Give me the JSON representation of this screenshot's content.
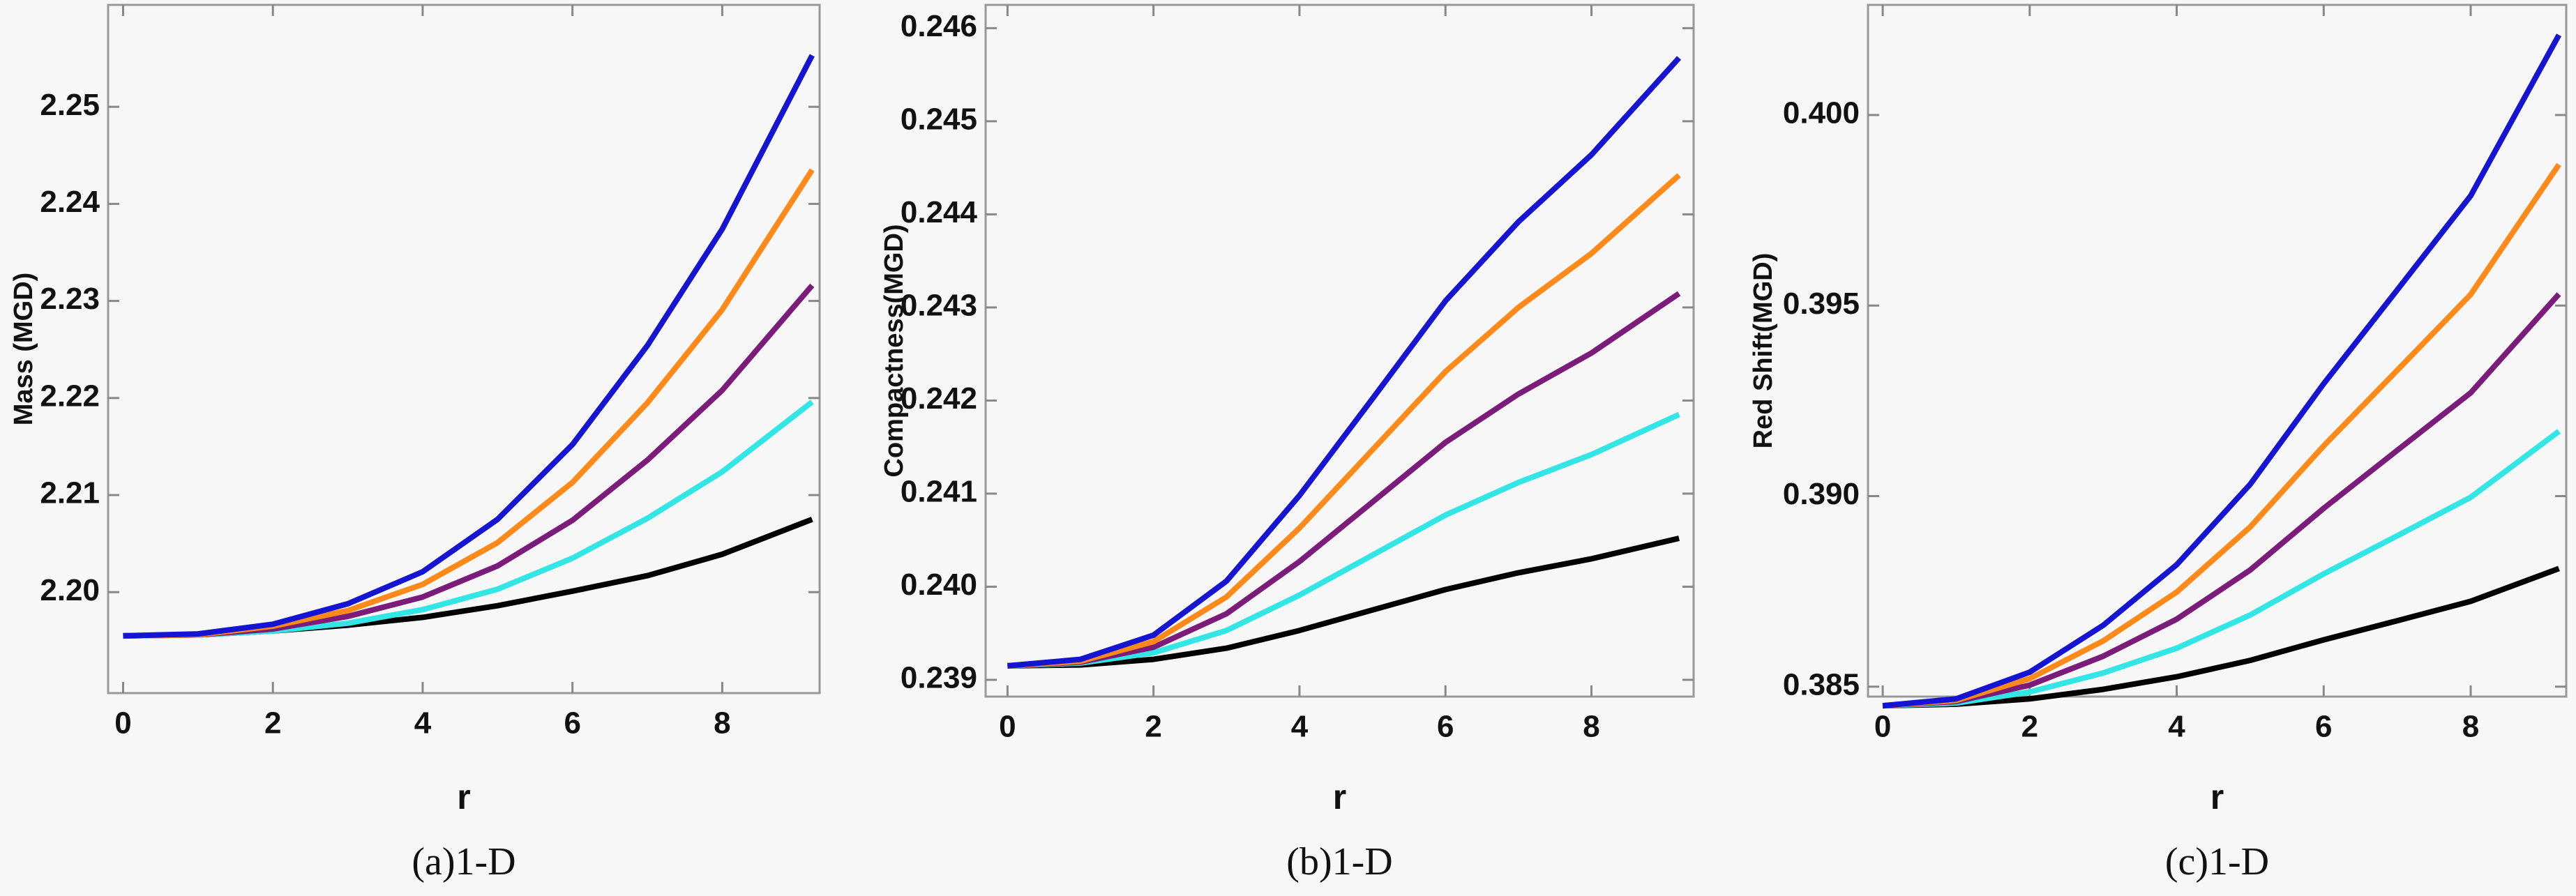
{
  "chart_data": [
    {
      "type": "line",
      "caption": "(a)1-D",
      "ylabel": "Mass (MGD)",
      "xlabel": "r",
      "x": [
        0,
        1,
        2,
        3,
        4,
        5,
        6,
        7,
        8,
        9.2
      ],
      "xlim": [
        -0.2,
        9.3
      ],
      "xticks": [
        0,
        2,
        4,
        6,
        8
      ],
      "ylim": [
        2.1896,
        2.2605
      ],
      "yticks": [
        {
          "value": 2.2,
          "label": "2.20"
        },
        2.21,
        2.22,
        2.23,
        2.24,
        2.25
      ],
      "series": [
        {
          "color": "#1414d2",
          "values": [
            2.1955,
            2.1957,
            2.1967,
            2.1988,
            2.2021,
            2.2075,
            2.2152,
            2.2254,
            2.2374,
            2.2553
          ]
        },
        {
          "color": "#ff8a1a",
          "values": [
            2.1955,
            2.1956,
            2.1965,
            2.1981,
            2.2008,
            2.2051,
            2.2113,
            2.2195,
            2.2291,
            2.2435
          ]
        },
        {
          "color": "#7b1c7b",
          "values": [
            2.1955,
            2.1956,
            2.1962,
            2.1975,
            2.1995,
            2.2027,
            2.2074,
            2.2136,
            2.2208,
            2.2316
          ]
        },
        {
          "color": "#33e6e6",
          "values": [
            2.1955,
            2.1956,
            2.196,
            2.1968,
            2.1982,
            2.2003,
            2.2035,
            2.2076,
            2.2124,
            2.2196
          ]
        },
        {
          "color": "#000000",
          "values": [
            2.1955,
            2.1956,
            2.196,
            2.1966,
            2.1974,
            2.1986,
            2.2001,
            2.2017,
            2.2039,
            2.2075
          ]
        }
      ]
    },
    {
      "type": "line",
      "caption": "(b)1-D",
      "ylabel": "Compactness(MGD)",
      "xlabel": "r",
      "x": [
        0,
        1,
        2,
        3,
        4,
        5,
        6,
        7,
        8,
        9.2
      ],
      "xlim": [
        -0.3,
        9.4
      ],
      "xticks": [
        0,
        2,
        4,
        6,
        8
      ],
      "ylim": [
        0.23882,
        0.24625
      ],
      "yticks": [
        0.239,
        {
          "value": 0.24,
          "label": "0.240"
        },
        0.241,
        0.242,
        0.243,
        0.244,
        0.245,
        0.246
      ],
      "series": [
        {
          "color": "#1414d2",
          "values": [
            0.23915,
            0.23922,
            0.23948,
            0.24006,
            0.24098,
            0.24202,
            0.24307,
            0.24392,
            0.24464,
            0.24568
          ]
        },
        {
          "color": "#ff8a1a",
          "values": [
            0.23915,
            0.2392,
            0.23941,
            0.23989,
            0.24063,
            0.24147,
            0.24231,
            0.243,
            0.24358,
            0.24442
          ]
        },
        {
          "color": "#7b1c7b",
          "values": [
            0.23915,
            0.23919,
            0.23935,
            0.23971,
            0.24027,
            0.24091,
            0.24155,
            0.24207,
            0.24251,
            0.24315
          ]
        },
        {
          "color": "#33e6e6",
          "values": [
            0.23915,
            0.23918,
            0.23929,
            0.23953,
            0.23991,
            0.24034,
            0.24077,
            0.24112,
            0.24142,
            0.24185
          ]
        },
        {
          "color": "#000000",
          "values": [
            0.23915,
            0.23916,
            0.23922,
            0.23934,
            0.23953,
            0.23975,
            0.23997,
            0.24015,
            0.2403,
            0.24052
          ]
        }
      ]
    },
    {
      "type": "line",
      "caption": "(c)1-D",
      "ylabel": "Red Shift(MGD)",
      "xlabel": "r",
      "x": [
        0,
        1,
        2,
        3,
        4,
        5,
        6,
        7,
        8,
        9.2
      ],
      "xlim": [
        -0.2,
        9.3
      ],
      "xticks": [
        0,
        2,
        4,
        6,
        8
      ],
      "ylim": [
        0.38474,
        0.40289
      ],
      "yticks": [
        0.385,
        {
          "value": 0.39,
          "label": "0.390"
        },
        0.395,
        {
          "value": 0.4,
          "label": "0.400"
        }
      ],
      "series": [
        {
          "color": "#1414d2",
          "values": [
            0.3845,
            0.38468,
            0.38538,
            0.38661,
            0.3882,
            0.39031,
            0.39295,
            0.39541,
            0.39788,
            0.4021
          ]
        },
        {
          "color": "#ff8a1a",
          "values": [
            0.3845,
            0.38464,
            0.38521,
            0.3862,
            0.38748,
            0.38919,
            0.39132,
            0.3933,
            0.39529,
            0.3987
          ]
        },
        {
          "color": "#7b1c7b",
          "values": [
            0.3845,
            0.38461,
            0.38504,
            0.3858,
            0.38677,
            0.38806,
            0.38968,
            0.3912,
            0.39271,
            0.3953
          ]
        },
        {
          "color": "#33e6e6",
          "values": [
            0.3845,
            0.38457,
            0.38486,
            0.38536,
            0.38601,
            0.38688,
            0.38796,
            0.38896,
            0.38997,
            0.3917
          ]
        },
        {
          "color": "#000000",
          "values": [
            0.3845,
            0.38454,
            0.38468,
            0.38493,
            0.38526,
            0.38569,
            0.38623,
            0.38673,
            0.38724,
            0.3881
          ]
        }
      ]
    }
  ]
}
